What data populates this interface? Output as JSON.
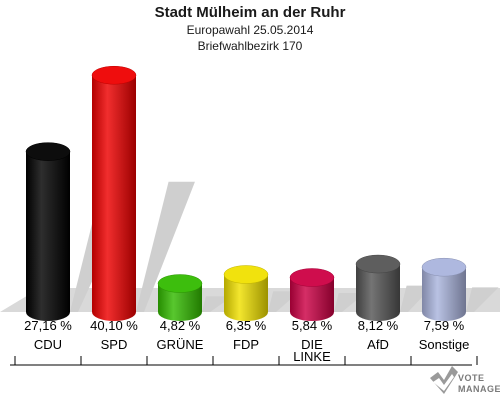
{
  "chart_data": {
    "type": "bar",
    "title": "Stadt Mülheim an der Ruhr",
    "subtitle_1": "Europawahl 25.05.2014",
    "subtitle_2": "Briefwahlbezirk 170",
    "categories": [
      "CDU",
      "SPD",
      "GRÜNE",
      "FDP",
      "DIE LINKE",
      "AfD",
      "Sonstige"
    ],
    "category_lines": [
      [
        "CDU"
      ],
      [
        "SPD"
      ],
      [
        "GRÜNE"
      ],
      [
        "FDP"
      ],
      [
        "DIE",
        "LINKE"
      ],
      [
        "AfD"
      ],
      [
        "Sonstige"
      ]
    ],
    "values": [
      27.16,
      40.1,
      4.82,
      6.35,
      5.84,
      8.12,
      7.59
    ],
    "value_labels": [
      "27,16 %",
      "40,10 %",
      "4,82 %",
      "6,35 %",
      "5,84 %",
      "8,12 %",
      "7,59 %"
    ],
    "colors": [
      "#000000",
      "#ee0000",
      "#33bb00",
      "#f0e000",
      "#cc0044",
      "#555555",
      "#aab4dd"
    ],
    "ylim": [
      0,
      42
    ],
    "grid": false,
    "legend": "none"
  },
  "watermark": {
    "line1": "VOTE",
    "line2": "MANAGER"
  }
}
